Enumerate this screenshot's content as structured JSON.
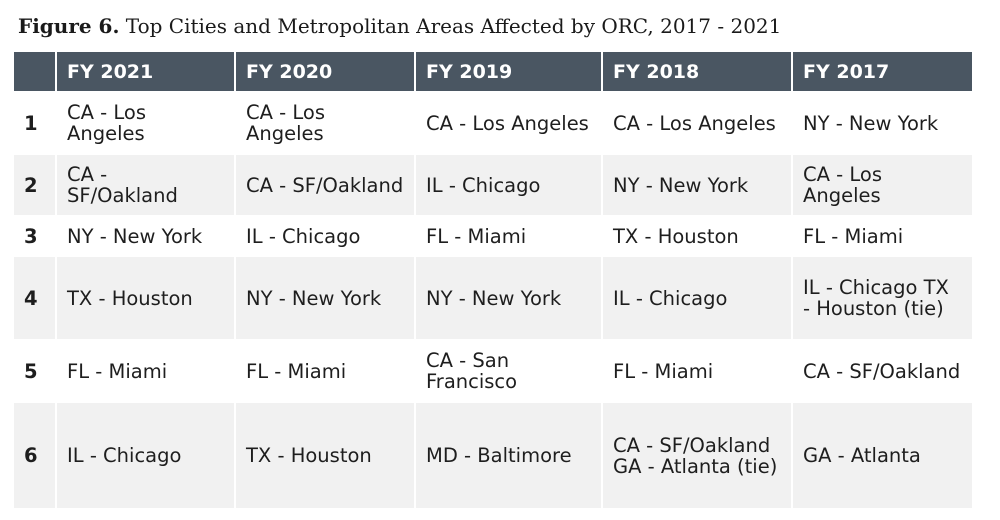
{
  "figure": {
    "label": "Figure 6.",
    "title": "Top Cities and Metropolitan Areas Affected by ORC, 2017 - 2021"
  },
  "table": {
    "headers": [
      "",
      "FY 2021",
      "FY 2020",
      "FY 2019",
      "FY 2018",
      "FY 2017"
    ],
    "rows": [
      {
        "rank": "1",
        "cells": [
          "CA - Los Angeles",
          "CA - Los Angeles",
          "CA - Los Angeles",
          "CA - Los Angeles",
          "NY - New York"
        ]
      },
      {
        "rank": "2",
        "cells": [
          "CA - SF/Oakland",
          "CA - SF/Oakland",
          "IL - Chicago",
          "NY - New York",
          "CA - Los Angeles"
        ]
      },
      {
        "rank": "3",
        "cells": [
          "NY - New York",
          "IL - Chicago",
          "FL - Miami",
          "TX - Houston",
          "FL - Miami"
        ]
      },
      {
        "rank": "4",
        "cells": [
          "TX - Houston",
          "NY - New York",
          "NY - New York",
          "IL - Chicago",
          "IL - Chicago TX - Houston (tie)"
        ]
      },
      {
        "rank": "5",
        "cells": [
          "FL - Miami",
          "FL - Miami",
          "CA - San Francisco",
          "FL - Miami",
          "CA - SF/Oakland"
        ]
      },
      {
        "rank": "6",
        "cells": [
          "IL - Chicago",
          "TX - Houston",
          "MD - Baltimore",
          "CA - SF/Oakland GA - Atlanta (tie)",
          "GA - Atlanta"
        ]
      }
    ]
  }
}
